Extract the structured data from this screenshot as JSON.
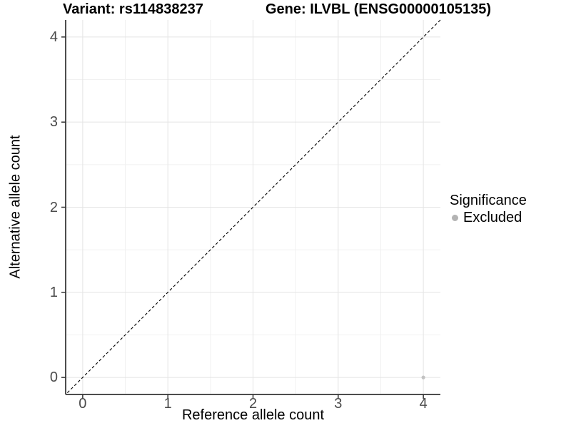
{
  "chart_data": {
    "type": "scatter",
    "title_left": "Variant: rs114838237",
    "title_right": "Gene: ILVBL (ENSG00000105135)",
    "xlabel": "Reference allele count",
    "ylabel": "Alternative allele count",
    "xlim": [
      -0.2,
      4.2
    ],
    "ylim": [
      -0.2,
      4.2
    ],
    "xticks": [
      0,
      1,
      2,
      3,
      4
    ],
    "yticks": [
      0,
      1,
      2,
      3,
      4
    ],
    "minor_xticks": [
      0.5,
      1.5,
      2.5,
      3.5
    ],
    "minor_yticks": [
      0.5,
      1.5,
      2.5,
      3.5
    ],
    "grid": "major+minor",
    "identity_line": {
      "style": "dashed",
      "color": "#000000",
      "from": [
        -0.18,
        -0.18
      ],
      "to": [
        4.2,
        4.2
      ]
    },
    "series": [
      {
        "name": "Excluded",
        "color": "#c2c2c2",
        "points": [
          [
            4,
            0
          ]
        ]
      }
    ],
    "legend": {
      "title": "Significance",
      "position": "right",
      "entries": [
        {
          "label": "Excluded",
          "color": "#b3b3b3",
          "marker": "circle"
        }
      ]
    }
  },
  "colors": {
    "panel_background": "#ffffff",
    "grid_major": "#e4e4e4",
    "grid_minor": "#f1f1f1",
    "axis_line": "#4d4d4d",
    "tick_mark": "#333333",
    "tick_text": "#4a4a4a",
    "title_text": "#000000"
  }
}
